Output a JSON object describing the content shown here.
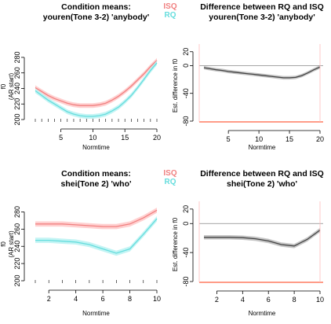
{
  "chart_data": [
    {
      "type": "line",
      "title_line1": "Condition means:",
      "title_line2": "youren(Tone 3-2) 'anybody'",
      "xlabel": "Normtime",
      "ylabel": "f0",
      "ylabel2": "(AR start)",
      "xticks": [
        5,
        10,
        15,
        20
      ],
      "yticks": [
        200,
        220,
        240,
        260,
        280
      ],
      "xlim": [
        1,
        20
      ],
      "ylim": [
        200,
        285
      ],
      "grid": false,
      "legend_position": "top-right",
      "series": [
        {
          "name": "ISQ",
          "color": "#f08080",
          "band_color": "#ffc8c8",
          "x": [
            1,
            2,
            3,
            4,
            5,
            6,
            7,
            8,
            9,
            10,
            11,
            12,
            13,
            14,
            15,
            16,
            17,
            18,
            19,
            20
          ],
          "y": [
            241,
            236,
            231,
            227,
            224,
            221,
            219,
            218,
            218,
            218,
            219,
            221,
            225,
            230,
            236,
            243,
            251,
            259,
            268,
            276
          ],
          "band": 3
        },
        {
          "name": "RQ",
          "color": "#66dddd",
          "band_color": "#b8f2f2",
          "x": [
            1,
            2,
            3,
            4,
            5,
            6,
            7,
            8,
            9,
            10,
            11,
            12,
            13,
            14,
            15,
            16,
            17,
            18,
            19,
            20
          ],
          "y": [
            237,
            231,
            225,
            220,
            215,
            210,
            207,
            205,
            204,
            204,
            205,
            207,
            211,
            216,
            223,
            231,
            241,
            252,
            263,
            273
          ],
          "band": 3
        }
      ]
    },
    {
      "type": "line",
      "title_line1": "Difference between RQ and ISQ",
      "title_line2": "youren(Tone 3-2) 'anybody'",
      "xlabel": "Normtime",
      "ylabel": "Est. difference in f0",
      "xticks": [
        5,
        10,
        15,
        20
      ],
      "yticks": [
        -80,
        -40,
        0,
        20
      ],
      "xlim": [
        1,
        20
      ],
      "ylim": [
        -80,
        22
      ],
      "grid": false,
      "reference_line": 0,
      "highlight_color": "#ff6040",
      "series": [
        {
          "name": "",
          "color": "#444444",
          "band_color": "#bbbbbb",
          "x": [
            1,
            2,
            3,
            4,
            5,
            6,
            7,
            8,
            9,
            10,
            11,
            12,
            13,
            14,
            15,
            16,
            17,
            18,
            19,
            20
          ],
          "y": [
            -3,
            -4.5,
            -6,
            -7,
            -8.5,
            -9.5,
            -10.5,
            -11.5,
            -12.5,
            -13.5,
            -14.5,
            -15.5,
            -16.5,
            -17.5,
            -17.5,
            -17,
            -14.5,
            -10.5,
            -6,
            -2
          ],
          "band": 2.5
        }
      ]
    },
    {
      "type": "line",
      "title_line1": "Condition means:",
      "title_line2": "shei(Tone 2) 'who'",
      "xlabel": "Normtime",
      "ylabel": "f0",
      "ylabel2": "(AR start)",
      "xticks": [
        2,
        4,
        6,
        8,
        10
      ],
      "yticks": [
        200,
        220,
        240,
        260,
        280
      ],
      "xlim": [
        1,
        10
      ],
      "ylim": [
        200,
        285
      ],
      "grid": false,
      "legend_position": "top-right",
      "series": [
        {
          "name": "ISQ",
          "color": "#f08080",
          "band_color": "#ffc8c8",
          "x": [
            1,
            2,
            3,
            4,
            5,
            6,
            7,
            8,
            9,
            10
          ],
          "y": [
            266,
            266,
            266,
            265,
            264,
            263,
            263,
            266,
            273,
            282
          ],
          "band": 3
        },
        {
          "name": "RQ",
          "color": "#66dddd",
          "band_color": "#b8f2f2",
          "x": [
            1,
            2,
            3,
            4,
            5,
            6,
            7,
            8,
            9,
            10
          ],
          "y": [
            247,
            247,
            246,
            245,
            242,
            237,
            232,
            237,
            254,
            272
          ],
          "band": 3
        }
      ]
    },
    {
      "type": "line",
      "title_line1": "Difference between RQ and ISQ",
      "title_line2": "shei(Tone 2) 'who'",
      "xlabel": "Normtime",
      "ylabel": "Est. difference in f0",
      "xticks": [
        2,
        4,
        6,
        8,
        10
      ],
      "yticks": [
        -80,
        -40,
        0,
        20
      ],
      "xlim": [
        1,
        10
      ],
      "ylim": [
        -80,
        22
      ],
      "grid": false,
      "reference_line": 0,
      "highlight_color": "#ff6040",
      "series": [
        {
          "name": "",
          "color": "#444444",
          "band_color": "#bbbbbb",
          "x": [
            1,
            2,
            3,
            4,
            5,
            6,
            7,
            8,
            9,
            10
          ],
          "y": [
            -19,
            -19,
            -19,
            -19.5,
            -21,
            -24,
            -29,
            -31,
            -22,
            -9
          ],
          "band": 3
        }
      ]
    }
  ]
}
